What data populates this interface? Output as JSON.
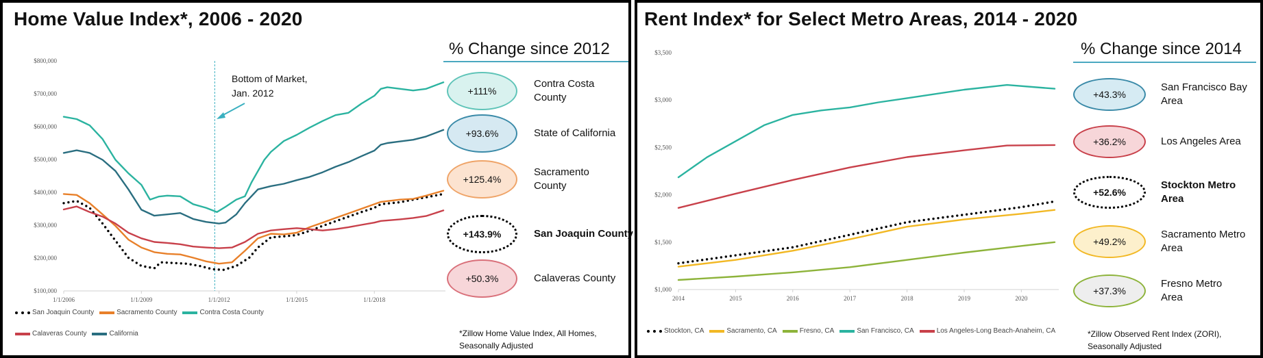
{
  "left": {
    "title": "Home Value Index*, 2006 - 2020",
    "change_title": "% Change since 2012",
    "footnote": [
      "*Zillow Home Value Index, All Homes,",
      "Seasonally Adjusted"
    ],
    "badges": [
      {
        "value": "+111%",
        "label": [
          "Contra Costa",
          "County"
        ],
        "fill": "#d9f2ef",
        "border": "#5fc4b8",
        "style": "solid",
        "bold": false
      },
      {
        "value": "+93.6%",
        "label": [
          "State of California"
        ],
        "fill": "#d6e9f2",
        "border": "#3a8aa8",
        "style": "solid",
        "bold": false
      },
      {
        "value": "+125.4%",
        "label": [
          "Sacramento",
          "County"
        ],
        "fill": "#fce3d0",
        "border": "#efa468",
        "style": "solid",
        "bold": false
      },
      {
        "value": "+143.9%",
        "label": [
          "San Joaquin County"
        ],
        "fill": "#ffffff",
        "border": "#000000",
        "style": "dotted",
        "bold": true
      },
      {
        "value": "+50.3%",
        "label": [
          "Calaveras County"
        ],
        "fill": "#f7d6d9",
        "border": "#d9707a",
        "style": "solid",
        "bold": false
      }
    ]
  },
  "right": {
    "title": "Rent Index* for Select Metro Areas, 2014 - 2020",
    "change_title": "% Change since 2014",
    "footnote": [
      "*Zillow Observed Rent Index (ZORI),",
      "Seasonally Adjusted"
    ],
    "badges": [
      {
        "value": "+43.3%",
        "label": [
          "San Francisco Bay",
          "Area"
        ],
        "fill": "#d6ebf3",
        "border": "#3a8aa8",
        "style": "solid",
        "bold": false
      },
      {
        "value": "+36.2%",
        "label": [
          "Los Angeles Area"
        ],
        "fill": "#f7d6d9",
        "border": "#c8404a",
        "style": "solid",
        "bold": false
      },
      {
        "value": "+52.6%",
        "label": [
          "Stockton Metro",
          "Area"
        ],
        "fill": "#ffffff",
        "border": "#000000",
        "style": "dotted",
        "bold": true
      },
      {
        "value": "+49.2%",
        "label": [
          "Sacramento Metro",
          "Area"
        ],
        "fill": "#fdf0cc",
        "border": "#f2b824",
        "style": "solid",
        "bold": false
      },
      {
        "value": "+37.3%",
        "label": [
          "Fresno Metro",
          "Area"
        ],
        "fill": "#eeeeee",
        "border": "#8db33a",
        "style": "solid",
        "bold": false
      }
    ]
  },
  "chart_data": [
    {
      "type": "line",
      "title": "Home Value Index*, 2006 - 2020",
      "ylim": [
        100000,
        800000
      ],
      "yticks": [
        100000,
        200000,
        300000,
        400000,
        500000,
        600000,
        700000,
        800000
      ],
      "ytick_labels": [
        "$100,000",
        "$200,000",
        "$300,000",
        "$400,000",
        "$500,000",
        "$600,000",
        "$700,000",
        "$800,000"
      ],
      "xlim": [
        "2006-01",
        "2020-09"
      ],
      "xticks": [
        "2006-01",
        "2009-01",
        "2012-01",
        "2015-01",
        "2018-01"
      ],
      "xtick_labels": [
        "1/1/2006",
        "1/1/2009",
        "1/1/2012",
        "1/1/2015",
        "1/1/2018"
      ],
      "grid": false,
      "legend": "bottom",
      "annotation": {
        "text": [
          "Bottom of Market,",
          "Jan. 2012"
        ],
        "x": "2011-11",
        "color": "#3ab0c0"
      },
      "series": [
        {
          "name": "San Joaquin County",
          "color": "#000000",
          "dash": "dotted",
          "x": [
            "2006-01",
            "2006-07",
            "2007-01",
            "2007-07",
            "2008-01",
            "2008-07",
            "2009-01",
            "2009-07",
            "2009-10",
            "2010-04",
            "2010-10",
            "2011-04",
            "2011-10",
            "2012-03",
            "2012-09",
            "2013-03",
            "2013-07",
            "2014-01",
            "2014-07",
            "2015-01",
            "2015-07",
            "2016-01",
            "2016-07",
            "2017-01",
            "2017-07",
            "2018-01",
            "2018-04",
            "2019-01",
            "2019-07",
            "2020-01",
            "2020-09"
          ],
          "values": [
            367000,
            374000,
            353000,
            305000,
            253000,
            201000,
            176000,
            169000,
            187000,
            185000,
            183000,
            176000,
            166000,
            164000,
            176000,
            201000,
            232000,
            263000,
            266000,
            270000,
            283000,
            298000,
            312000,
            326000,
            340000,
            353000,
            364000,
            370000,
            378000,
            385000,
            395000
          ]
        },
        {
          "name": "Sacramento County",
          "color": "#e8802a",
          "dash": "solid",
          "x": [
            "2006-01",
            "2006-07",
            "2007-01",
            "2007-07",
            "2008-01",
            "2008-07",
            "2009-01",
            "2009-07",
            "2010-01",
            "2010-07",
            "2011-01",
            "2011-07",
            "2012-01",
            "2012-07",
            "2013-01",
            "2013-07",
            "2014-01",
            "2014-07",
            "2015-01",
            "2015-07",
            "2016-01",
            "2016-07",
            "2017-01",
            "2017-07",
            "2018-01",
            "2018-04",
            "2019-01",
            "2019-07",
            "2020-01",
            "2020-09"
          ],
          "values": [
            395000,
            392000,
            367000,
            333000,
            298000,
            256000,
            232000,
            218000,
            213000,
            211000,
            201000,
            190000,
            183000,
            187000,
            222000,
            260000,
            274000,
            272000,
            277000,
            294000,
            308000,
            322000,
            336000,
            350000,
            364000,
            371000,
            378000,
            380000,
            390000,
            405000
          ]
        },
        {
          "name": "Contra Costa County",
          "color": "#2bb3a0",
          "dash": "solid",
          "x": [
            "2006-01",
            "2006-07",
            "2007-01",
            "2007-07",
            "2008-01",
            "2008-07",
            "2009-01",
            "2009-05",
            "2009-09",
            "2010-01",
            "2010-07",
            "2011-01",
            "2011-07",
            "2011-12",
            "2012-04",
            "2012-09",
            "2013-01",
            "2013-04",
            "2013-10",
            "2014-01",
            "2014-07",
            "2015-01",
            "2015-07",
            "2016-01",
            "2016-07",
            "2017-01",
            "2017-07",
            "2018-01",
            "2018-04",
            "2018-07",
            "2019-01",
            "2019-07",
            "2020-01",
            "2020-09"
          ],
          "values": [
            630000,
            623000,
            604000,
            562000,
            499000,
            458000,
            423000,
            378000,
            387000,
            390000,
            388000,
            364000,
            353000,
            340000,
            356000,
            378000,
            388000,
            430000,
            499000,
            523000,
            556000,
            575000,
            597000,
            617000,
            635000,
            642000,
            670000,
            694000,
            715000,
            720000,
            715000,
            710000,
            715000,
            735000
          ]
        },
        {
          "name": "Calaveras County",
          "color": "#c8404a",
          "dash": "solid",
          "x": [
            "2006-01",
            "2006-07",
            "2007-01",
            "2007-07",
            "2008-01",
            "2008-07",
            "2009-01",
            "2009-07",
            "2010-01",
            "2010-07",
            "2011-01",
            "2011-07",
            "2012-01",
            "2012-07",
            "2013-01",
            "2013-07",
            "2014-01",
            "2014-07",
            "2015-01",
            "2015-07",
            "2016-01",
            "2016-07",
            "2017-01",
            "2017-07",
            "2018-01",
            "2018-04",
            "2019-01",
            "2019-07",
            "2020-01",
            "2020-09"
          ],
          "values": [
            348000,
            357000,
            340000,
            326000,
            305000,
            277000,
            260000,
            249000,
            246000,
            242000,
            235000,
            232000,
            230000,
            232000,
            249000,
            274000,
            284000,
            288000,
            291000,
            288000,
            284000,
            288000,
            294000,
            301000,
            308000,
            313000,
            318000,
            322000,
            328000,
            345000
          ]
        },
        {
          "name": "California",
          "color": "#2a6e80",
          "dash": "solid",
          "x": [
            "2006-01",
            "2006-07",
            "2007-01",
            "2007-07",
            "2008-01",
            "2008-07",
            "2009-01",
            "2009-07",
            "2010-01",
            "2010-07",
            "2011-01",
            "2011-07",
            "2012-01",
            "2012-04",
            "2012-09",
            "2013-01",
            "2013-07",
            "2014-01",
            "2014-07",
            "2015-01",
            "2015-07",
            "2016-01",
            "2016-07",
            "2017-01",
            "2017-07",
            "2018-01",
            "2018-04",
            "2018-07",
            "2019-01",
            "2019-07",
            "2020-01",
            "2020-09"
          ],
          "values": [
            520000,
            528000,
            520000,
            499000,
            465000,
            409000,
            347000,
            329000,
            333000,
            337000,
            319000,
            310000,
            305000,
            308000,
            333000,
            367000,
            409000,
            419000,
            426000,
            437000,
            447000,
            461000,
            478000,
            492000,
            510000,
            527000,
            545000,
            550000,
            555000,
            560000,
            570000,
            590000
          ]
        }
      ]
    },
    {
      "type": "line",
      "title": "Rent Index* for Select Metro Areas, 2014 - 2020",
      "ylim": [
        1000,
        3500
      ],
      "yticks": [
        1000,
        1500,
        2000,
        2500,
        3000,
        3500
      ],
      "ytick_labels": [
        "$1,000",
        "$1,500",
        "$2,000",
        "$2,500",
        "$3,000",
        "$3,500"
      ],
      "xlim": [
        "2014-01",
        "2020-08"
      ],
      "xticks": [
        "2014-01",
        "2015-01",
        "2016-01",
        "2017-01",
        "2018-01",
        "2019-01",
        "2020-01"
      ],
      "xtick_labels": [
        "2014",
        "2015",
        "2016",
        "2017",
        "2018",
        "2019",
        "2020"
      ],
      "grid": false,
      "legend": "bottom",
      "series": [
        {
          "name": "Stockton, CA",
          "color": "#000000",
          "dash": "dotted",
          "x": [
            "2014-01",
            "2015-01",
            "2016-01",
            "2017-01",
            "2018-01",
            "2019-01",
            "2020-01",
            "2020-08"
          ],
          "values": [
            1277,
            1361,
            1446,
            1578,
            1711,
            1790,
            1870,
            1930
          ]
        },
        {
          "name": "Sacramento, CA",
          "color": "#f2b824",
          "dash": "solid",
          "x": [
            "2014-01",
            "2015-01",
            "2016-01",
            "2017-01",
            "2018-01",
            "2019-01",
            "2020-01",
            "2020-08"
          ],
          "values": [
            1241,
            1313,
            1410,
            1530,
            1663,
            1740,
            1800,
            1840
          ]
        },
        {
          "name": "Fresno, CA",
          "color": "#8db33a",
          "dash": "solid",
          "x": [
            "2014-01",
            "2015-01",
            "2016-01",
            "2017-01",
            "2018-01",
            "2019-01",
            "2020-01",
            "2020-08"
          ],
          "values": [
            1101,
            1137,
            1181,
            1236,
            1313,
            1390,
            1460,
            1500
          ]
        },
        {
          "name": "San Francisco, CA",
          "color": "#2bb3a0",
          "dash": "solid",
          "x": [
            "2014-01",
            "2014-07",
            "2015-01",
            "2015-07",
            "2016-01",
            "2016-07",
            "2017-01",
            "2017-07",
            "2018-01",
            "2019-01",
            "2019-10",
            "2020-08"
          ],
          "values": [
            2185,
            2397,
            2566,
            2735,
            2843,
            2891,
            2923,
            2976,
            3020,
            3110,
            3160,
            3120
          ]
        },
        {
          "name": "Los Angeles-Long Beach-Anaheim, CA",
          "color": "#c8404a",
          "dash": "solid",
          "x": [
            "2014-01",
            "2015-01",
            "2016-01",
            "2017-01",
            "2018-01",
            "2019-01",
            "2019-10",
            "2020-08"
          ],
          "values": [
            1862,
            2012,
            2157,
            2289,
            2398,
            2470,
            2520,
            2525
          ]
        }
      ]
    }
  ]
}
